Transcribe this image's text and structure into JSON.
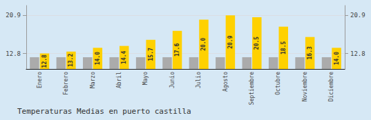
{
  "chart_data": {
    "type": "bar",
    "title": "Temperaturas Medias en puerto castilla",
    "categories": [
      "Enero",
      "Febrero",
      "Marzo",
      "Abril",
      "Mayo",
      "Junio",
      "Julio",
      "Agosto",
      "Septiembre",
      "Octubre",
      "Noviembre",
      "Diciembre"
    ],
    "series": [
      {
        "color": "#ABABAB",
        "values": [
          12.0,
          12.0,
          12.0,
          12.0,
          12.0,
          12.0,
          12.0,
          12.0,
          12.0,
          12.0,
          12.0,
          12.0
        ]
      },
      {
        "color": "#FFD100",
        "values": [
          12.8,
          13.2,
          14.0,
          14.4,
          15.7,
          17.6,
          20.0,
          20.9,
          20.5,
          18.5,
          16.3,
          14.0
        ],
        "value_labels": [
          "12.8",
          "13.2",
          "14.0",
          "14.4",
          "15.7",
          "17.6",
          "20.0",
          "20.9",
          "20.5",
          "18.5",
          "16.3",
          "14.0"
        ],
        "data_labels": true
      }
    ],
    "ylim": [
      9.5,
      23.0
    ],
    "yticks": [
      12.8,
      20.9
    ],
    "y2lim": [
      9.5,
      23.0
    ],
    "y2ticks": [
      12.8,
      20.9
    ],
    "grid": true
  }
}
